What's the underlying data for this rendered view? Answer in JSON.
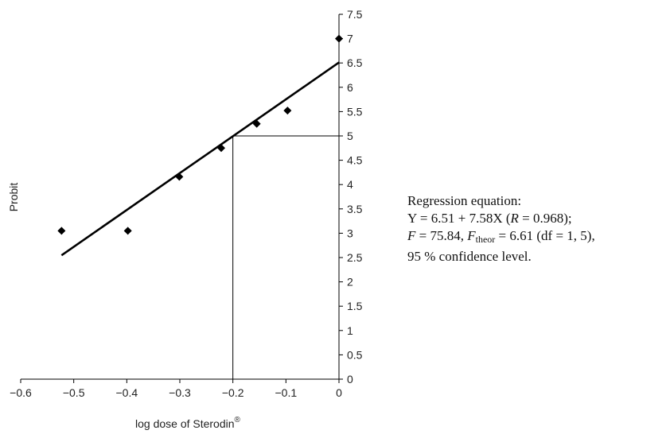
{
  "chart_data": {
    "type": "scatter",
    "xlabel": "log dose of Sterodin",
    "xlabel_sup": "®",
    "ylabel": "Probit",
    "xlim": [
      -0.6,
      0
    ],
    "ylim": [
      0,
      7.5
    ],
    "xticks": [
      "−0.6",
      "−0.5",
      "−0.4",
      "−0.3",
      "−0.2",
      "−0.1",
      "0"
    ],
    "xtick_values": [
      -0.6,
      -0.5,
      -0.4,
      -0.3,
      -0.2,
      -0.1,
      0
    ],
    "yticks": [
      "0",
      "0.5",
      "1",
      "1.5",
      "2",
      "2.5",
      "3",
      "3.5",
      "4",
      "4.5",
      "5",
      "5.5",
      "6",
      "6.5",
      "7",
      "7.5"
    ],
    "ytick_values": [
      0,
      0.5,
      1,
      1.5,
      2,
      2.5,
      3,
      3.5,
      4,
      4.5,
      5,
      5.5,
      6,
      6.5,
      7,
      7.5
    ],
    "points": [
      {
        "x": -0.523,
        "y": 3.05
      },
      {
        "x": -0.398,
        "y": 3.05
      },
      {
        "x": -0.301,
        "y": 4.16
      },
      {
        "x": -0.222,
        "y": 4.75
      },
      {
        "x": -0.155,
        "y": 5.25
      },
      {
        "x": -0.097,
        "y": 5.52
      },
      {
        "x": 0.0,
        "y": 7.0
      }
    ],
    "regression": {
      "intercept": 6.51,
      "slope": 7.58,
      "x_from": -0.523,
      "x_to": 0.0
    },
    "reference": {
      "x": -0.2,
      "y": 5
    }
  },
  "annotation": {
    "line1": "Regression equation:",
    "line2": "Y = 6.51 + 7.58X (",
    "line2_r": "R",
    "line2_rest": " = 0.968);",
    "line3_F": "F",
    "line3_a": " = 75.84, ",
    "line3_F2": "F",
    "line3_sub": "theor",
    "line3_b": " = 6.61 (df = 1, 5),",
    "line4": "95 % confidence level."
  }
}
